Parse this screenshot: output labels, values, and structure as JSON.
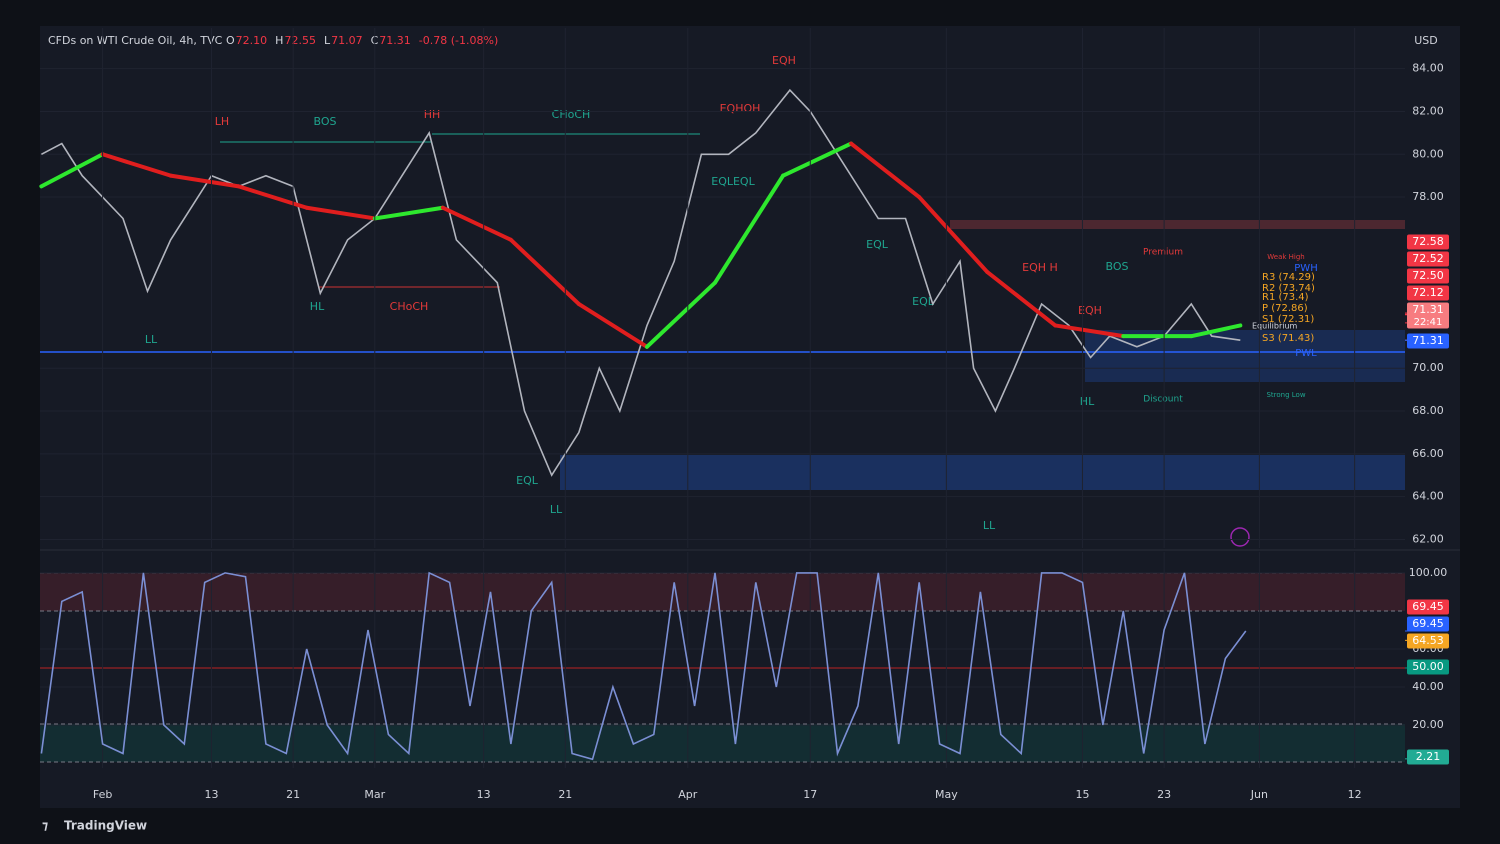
{
  "header": {
    "symbol": "CFDs on WTI Crude Oil, 4h, TVC",
    "ohlc": [
      {
        "key": "O",
        "value": "72.10"
      },
      {
        "key": "H",
        "value": "72.55"
      },
      {
        "key": "L",
        "value": "71.07"
      },
      {
        "key": "C",
        "value": "71.31"
      }
    ],
    "change": "-0.78 (-1.08%)",
    "currency": "USD"
  },
  "annotations": [
    "LH",
    "BOS",
    "HH",
    "CHoCH",
    "HL",
    "CHoCH",
    "LL",
    "EQL",
    "LL",
    "EQH",
    "EQHOH",
    "EQLEQL",
    "EQL",
    "EQL",
    "EQH H",
    "BOS",
    "Premium",
    "EQH",
    "HL",
    "Discount",
    "LL",
    "Weak High",
    "Strong Low",
    "PWH",
    "PWL",
    "R3 (74.29)",
    "R2 (73.74)",
    "R1 (73.4)",
    "P (72.86)",
    "S1 (72.31)",
    "Equilibrium",
    "S3 (71.43)"
  ],
  "footer": "TradingView",
  "chart_data": [
    {
      "type": "line",
      "xlim": [
        -4.6,
        95.7
      ],
      "ylim": [
        61.6,
        85.9
      ],
      "grid": true,
      "yticks": [
        {
          "value": 84,
          "label": "84.00"
        },
        {
          "value": 82,
          "label": "82.00"
        },
        {
          "value": 80,
          "label": "80.00"
        },
        {
          "value": 78,
          "label": "78.00"
        },
        {
          "value": 70,
          "label": "70.00"
        },
        {
          "value": 68,
          "label": "68.00"
        },
        {
          "value": 66,
          "label": "66.00"
        },
        {
          "value": 64,
          "label": "64.00"
        },
        {
          "value": 62,
          "label": "62.00"
        }
      ],
      "series": [
        {
          "color": "#b2b5be",
          "style": "plain",
          "x": [
            -4.5,
            -3,
            -1.5,
            0,
            1.5,
            3.3,
            5,
            7,
            8,
            10,
            12,
            14,
            16,
            18,
            20,
            22,
            24,
            26,
            29,
            31,
            33,
            35,
            36.5,
            38,
            40,
            42,
            44,
            46,
            48,
            50.5,
            52,
            54,
            57,
            59,
            61,
            63,
            64,
            65.6,
            67,
            69,
            71,
            72.6,
            74,
            76,
            78,
            80,
            81.5,
            83.6
          ],
          "values": [
            80,
            80.5,
            79,
            78,
            77,
            73.6,
            76,
            78,
            79,
            78.5,
            79,
            78.5,
            73.5,
            76,
            77,
            79,
            81,
            76,
            74,
            68,
            65,
            67,
            70,
            68,
            72,
            75,
            80,
            80,
            81,
            83,
            82,
            80,
            77,
            77,
            73,
            75,
            70,
            68,
            70,
            73,
            72,
            70.5,
            71.5,
            71,
            71.5,
            73,
            71.5,
            71.31
          ]
        },
        {
          "color": "#e01e1e",
          "rise_color": "#2ee82e",
          "style": "slope",
          "x": [
            -4.5,
            0,
            5,
            10,
            15,
            20,
            25,
            30,
            35,
            40,
            45,
            50,
            55,
            60,
            65,
            70,
            75,
            80,
            83.6
          ],
          "values": [
            78.5,
            80,
            79,
            78.5,
            77.5,
            77,
            77.5,
            76,
            73,
            71,
            74,
            79,
            80.5,
            78,
            74.5,
            72,
            71.5,
            71.5,
            72
          ]
        }
      ],
      "tags": [
        {
          "value": 72.58,
          "label": "72.58",
          "color": "#f23645"
        },
        {
          "value": 72.52,
          "label": "72.52",
          "color": "#f23645"
        },
        {
          "value": 72.5,
          "label": "72.50",
          "color": "#f23645"
        },
        {
          "value": 72.12,
          "label": "72.12",
          "color": "#f23645"
        },
        {
          "value": 71.31,
          "label": "71.31",
          "sub": "22:41",
          "color": "#f77c80"
        },
        {
          "value": 71.31,
          "label": "71.31",
          "color": "#2962ff"
        }
      ]
    },
    {
      "type": "line",
      "xlim": [
        -4.6,
        95.7
      ],
      "ylim": [
        -2.6,
        111
      ],
      "grid": true,
      "xticks": [
        {
          "value": 0,
          "label": "Feb"
        },
        {
          "value": 8,
          "label": "13"
        },
        {
          "value": 14,
          "label": "21"
        },
        {
          "value": 20,
          "label": "Mar"
        },
        {
          "value": 28,
          "label": "13"
        },
        {
          "value": 34,
          "label": "21"
        },
        {
          "value": 43,
          "label": "Apr"
        },
        {
          "value": 52,
          "label": "17"
        },
        {
          "value": 62,
          "label": "May"
        },
        {
          "value": 72,
          "label": "15"
        },
        {
          "value": 78,
          "label": "23"
        },
        {
          "value": 85,
          "label": "Jun"
        },
        {
          "value": 92,
          "label": "12"
        }
      ],
      "yticks": [
        {
          "value": 100,
          "label": "100.00"
        },
        {
          "value": 60,
          "label": "60.00"
        },
        {
          "value": 40,
          "label": "40.00"
        },
        {
          "value": 20,
          "label": "20.00"
        }
      ],
      "series": [
        {
          "color": "#7b8fd4",
          "style": "plain",
          "x": [
            -4.5,
            -3,
            -1.5,
            0,
            1.5,
            3,
            4.5,
            6,
            7.5,
            9,
            10.5,
            12,
            13.5,
            15,
            16.5,
            18,
            19.5,
            21,
            22.5,
            24,
            25.5,
            27,
            28.5,
            30,
            31.5,
            33,
            34.5,
            36,
            37.5,
            39,
            40.5,
            42,
            43.5,
            45,
            46.5,
            48,
            49.5,
            51,
            52.5,
            54,
            55.5,
            57,
            58.5,
            60,
            61.5,
            63,
            64.5,
            66,
            67.5,
            69,
            70.5,
            72,
            73.5,
            75,
            76.5,
            78,
            79.5,
            81,
            82.5,
            84
          ],
          "values": [
            5,
            85,
            90,
            10,
            5,
            100,
            20,
            10,
            95,
            100,
            98,
            10,
            5,
            60,
            20,
            5,
            70,
            15,
            5,
            100,
            95,
            30,
            90,
            10,
            80,
            95,
            5,
            2,
            40,
            10,
            15,
            95,
            30,
            100,
            10,
            95,
            40,
            100,
            100,
            5,
            30,
            100,
            10,
            95,
            10,
            5,
            90,
            15,
            5,
            100,
            100,
            95,
            20,
            80,
            5,
            70,
            100,
            10,
            55,
            69.45
          ]
        }
      ],
      "tags": [
        {
          "value": 69.45,
          "label": "69.45",
          "color": "#f23645"
        },
        {
          "value": 69.45,
          "label": "69.45",
          "color": "#2962ff"
        },
        {
          "value": 64.53,
          "label": "64.53",
          "color": "#f5a623"
        },
        {
          "value": 50,
          "label": "50.00",
          "color": "#089981"
        },
        {
          "value": 2.21,
          "label": "2.21",
          "color": "#22ab94"
        }
      ]
    }
  ]
}
